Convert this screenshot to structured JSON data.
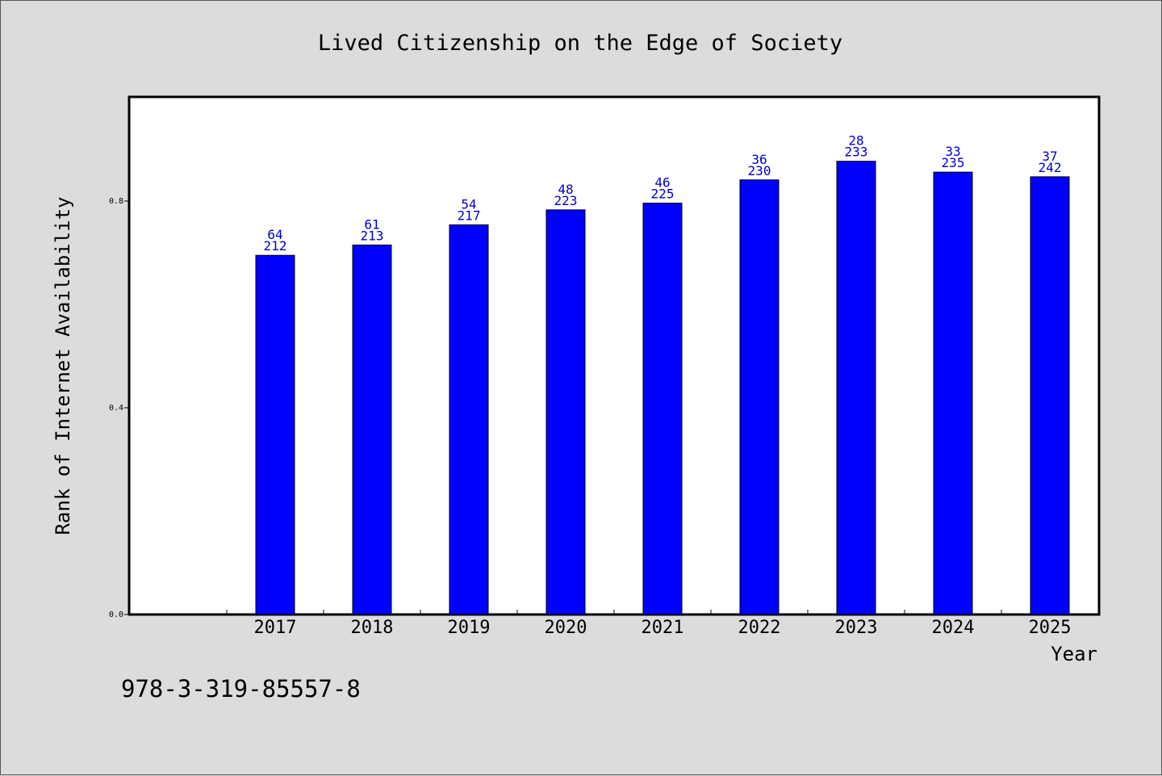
{
  "chart_data": {
    "type": "bar",
    "title": "Lived Citizenship on the Edge of Society",
    "xlabel": "Year",
    "ylabel": "Rank of Internet Availability",
    "ylim": [
      0.0,
      1.0
    ],
    "yticks": [
      "0.0",
      "0.4",
      "0.8"
    ],
    "grid": false,
    "categories": [
      "2017",
      "2018",
      "2019",
      "2020",
      "2021",
      "2022",
      "2023",
      "2024",
      "2025"
    ],
    "values": [
      0.695,
      0.715,
      0.754,
      0.783,
      0.796,
      0.841,
      0.877,
      0.856,
      0.847
    ],
    "labels_top": [
      "64",
      "61",
      "54",
      "48",
      "46",
      "36",
      "28",
      "33",
      "37"
    ],
    "labels_bottom": [
      "212",
      "213",
      "217",
      "223",
      "225",
      "230",
      "233",
      "235",
      "242"
    ],
    "bar_color": "#0000ff",
    "label_color": "#0000cc",
    "footnote": "978-3-319-85557-8"
  }
}
